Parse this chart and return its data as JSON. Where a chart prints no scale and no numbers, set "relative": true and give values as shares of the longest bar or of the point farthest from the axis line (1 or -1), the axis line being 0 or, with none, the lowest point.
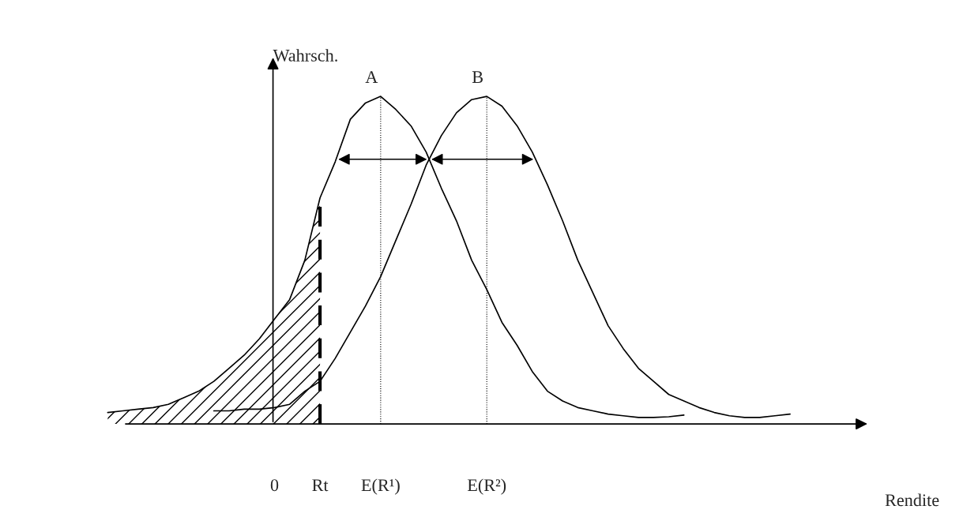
{
  "chart_data": {
    "type": "line",
    "relative": true,
    "ylabel": "Wahrsch.",
    "categories": [
      null,
      null,
      null,
      null,
      null,
      null,
      null,
      null,
      null,
      null,
      null,
      "0",
      null,
      null,
      "Rt",
      null,
      null,
      null,
      "E(R¹)",
      null,
      null,
      null,
      null,
      null,
      null,
      "E(R²)",
      null,
      null,
      null,
      null,
      null,
      null,
      null,
      null,
      null,
      null,
      null,
      null,
      null,
      null,
      null,
      null,
      null,
      null,
      null,
      null
    ],
    "series": [
      {
        "type": "area",
        "color": "#000000",
        "values": [
          0.035,
          0.04,
          0.045,
          0.05,
          0.06,
          0.08,
          0.1,
          0.13,
          0.17,
          0.21,
          0.26,
          0.32,
          0.38,
          0.5,
          0.69,
          null,
          null,
          null,
          null,
          null,
          null,
          null,
          null,
          null,
          null,
          null,
          null,
          null,
          null,
          null,
          null,
          null,
          null,
          null,
          null,
          null,
          null,
          null,
          null,
          null,
          null,
          null,
          null,
          null,
          null,
          null
        ]
      },
      {
        "name": "A",
        "color": "#000000",
        "values": [
          0.035,
          0.04,
          0.045,
          0.05,
          0.06,
          0.08,
          0.1,
          0.13,
          0.17,
          0.21,
          0.26,
          0.32,
          0.38,
          0.5,
          0.69,
          0.8,
          0.93,
          0.98,
          1.0,
          0.96,
          0.91,
          0.83,
          0.72,
          0.62,
          0.5,
          0.41,
          0.31,
          0.24,
          0.16,
          0.1,
          0.07,
          0.05,
          0.04,
          0.03,
          0.025,
          0.02,
          0.02,
          0.022,
          0.027,
          null,
          null,
          null,
          null,
          null,
          null,
          null
        ]
      },
      {
        "name": "B",
        "color": "#000000",
        "values": [
          null,
          null,
          null,
          null,
          null,
          null,
          null,
          0.04,
          0.04,
          0.045,
          0.045,
          0.05,
          0.06,
          0.1,
          0.13,
          0.2,
          0.28,
          0.36,
          0.45,
          0.56,
          0.67,
          0.79,
          0.88,
          0.95,
          0.99,
          1.0,
          0.97,
          0.91,
          0.83,
          0.73,
          0.62,
          0.5,
          0.4,
          0.3,
          0.23,
          0.17,
          0.13,
          0.09,
          0.07,
          0.05,
          0.035,
          0.025,
          0.02,
          0.02,
          0.025,
          0.03
        ]
      }
    ],
    "annotations": [
      "Rendite"
    ],
    "ref_lines": [
      {
        "axis": "x",
        "value": "Rt",
        "line_style": "dashed"
      },
      {
        "axis": "x",
        "value": "E(R¹)",
        "line_style": "dotted"
      },
      {
        "axis": "x",
        "value": "E(R²)",
        "line_style": "dotted"
      }
    ],
    "tick_labels": "x",
    "legend": false,
    "grid": false,
    "marker": "none",
    "line_style": "solid"
  }
}
